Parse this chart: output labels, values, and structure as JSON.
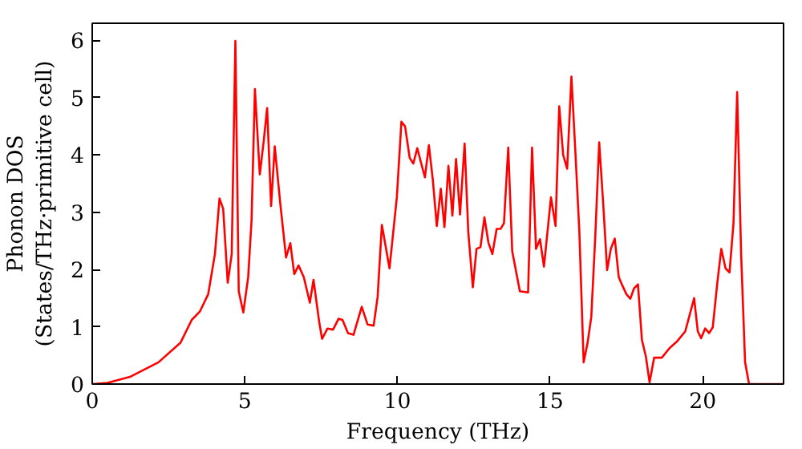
{
  "chart_data": {
    "type": "line",
    "xlabel": "Frequency (THz)",
    "ylabel": "Phonon DOS\n(States/THz·primitive cell)",
    "xlim": [
      0,
      22.65
    ],
    "ylim": [
      0,
      6.3
    ],
    "xticks": [
      0,
      5,
      10,
      15,
      20
    ],
    "yticks": [
      0,
      1,
      2,
      3,
      4,
      5,
      6
    ],
    "series": [
      {
        "color": "#ff0000",
        "x": [
          0,
          0.5,
          1.26,
          2.17,
          2.89,
          3.26,
          3.53,
          3.8,
          4.02,
          4.17,
          4.29,
          4.44,
          4.57,
          4.69,
          4.8,
          4.95,
          5.11,
          5.22,
          5.33,
          5.49,
          5.62,
          5.73,
          5.86,
          5.98,
          6.16,
          6.35,
          6.49,
          6.62,
          6.76,
          6.93,
          7.13,
          7.25,
          7.44,
          7.53,
          7.71,
          7.89,
          8.07,
          8.2,
          8.38,
          8.56,
          8.83,
          9.02,
          9.22,
          9.35,
          9.49,
          9.74,
          9.98,
          10.13,
          10.25,
          10.4,
          10.52,
          10.65,
          10.78,
          10.9,
          11.03,
          11.16,
          11.29,
          11.42,
          11.54,
          11.67,
          11.8,
          11.92,
          12.05,
          12.2,
          12.32,
          12.47,
          12.59,
          12.72,
          12.85,
          12.98,
          13.11,
          13.25,
          13.38,
          13.49,
          13.63,
          13.76,
          14.01,
          14.28,
          14.41,
          14.54,
          14.67,
          14.8,
          15.03,
          15.18,
          15.3,
          15.43,
          15.56,
          15.7,
          15.83,
          15.96,
          16.1,
          16.23,
          16.35,
          16.48,
          16.61,
          16.74,
          16.87,
          16.99,
          17.12,
          17.25,
          17.37,
          17.5,
          17.63,
          17.75,
          17.88,
          18.01,
          18.14,
          18.26,
          18.41,
          18.66,
          18.92,
          19.17,
          19.43,
          19.72,
          19.84,
          19.95,
          20.08,
          20.21,
          20.33,
          20.48,
          20.61,
          20.75,
          20.88,
          21.01,
          21.13,
          21.26,
          21.39,
          21.52,
          22.62
        ],
        "values": [
          0,
          0.02,
          0.13,
          0.38,
          0.72,
          1.12,
          1.27,
          1.57,
          2.27,
          3.24,
          3.06,
          1.77,
          2.27,
          5.99,
          1.62,
          1.25,
          1.87,
          2.86,
          5.15,
          3.66,
          4.25,
          4.82,
          3.11,
          4.15,
          3.16,
          2.21,
          2.46,
          1.92,
          2.07,
          1.87,
          1.42,
          1.82,
          1.07,
          0.79,
          0.97,
          0.95,
          1.14,
          1.12,
          0.89,
          0.86,
          1.35,
          1.04,
          1.02,
          1.52,
          2.78,
          2.02,
          3.26,
          4.58,
          4.5,
          3.95,
          3.85,
          4.12,
          3.85,
          3.61,
          4.17,
          3.56,
          2.76,
          3.41,
          2.74,
          3.81,
          2.94,
          3.93,
          2.96,
          4.2,
          2.66,
          1.69,
          2.36,
          2.39,
          2.91,
          2.47,
          2.27,
          2.71,
          2.71,
          2.81,
          4.13,
          2.32,
          1.62,
          1.6,
          4.13,
          2.36,
          2.53,
          2.05,
          3.26,
          2.76,
          4.85,
          4.0,
          3.76,
          5.37,
          4.05,
          2.66,
          0.38,
          0.72,
          1.17,
          2.56,
          4.22,
          3.16,
          1.99,
          2.36,
          2.54,
          1.87,
          1.72,
          1.57,
          1.49,
          1.67,
          1.74,
          0.77,
          0.48,
          0.03,
          0.46,
          0.46,
          0.63,
          0.75,
          0.92,
          1.5,
          0.92,
          0.8,
          0.97,
          0.89,
          0.99,
          1.77,
          2.36,
          2.02,
          1.95,
          2.81,
          5.1,
          2.27,
          0.38,
          0,
          0
        ]
      }
    ]
  }
}
